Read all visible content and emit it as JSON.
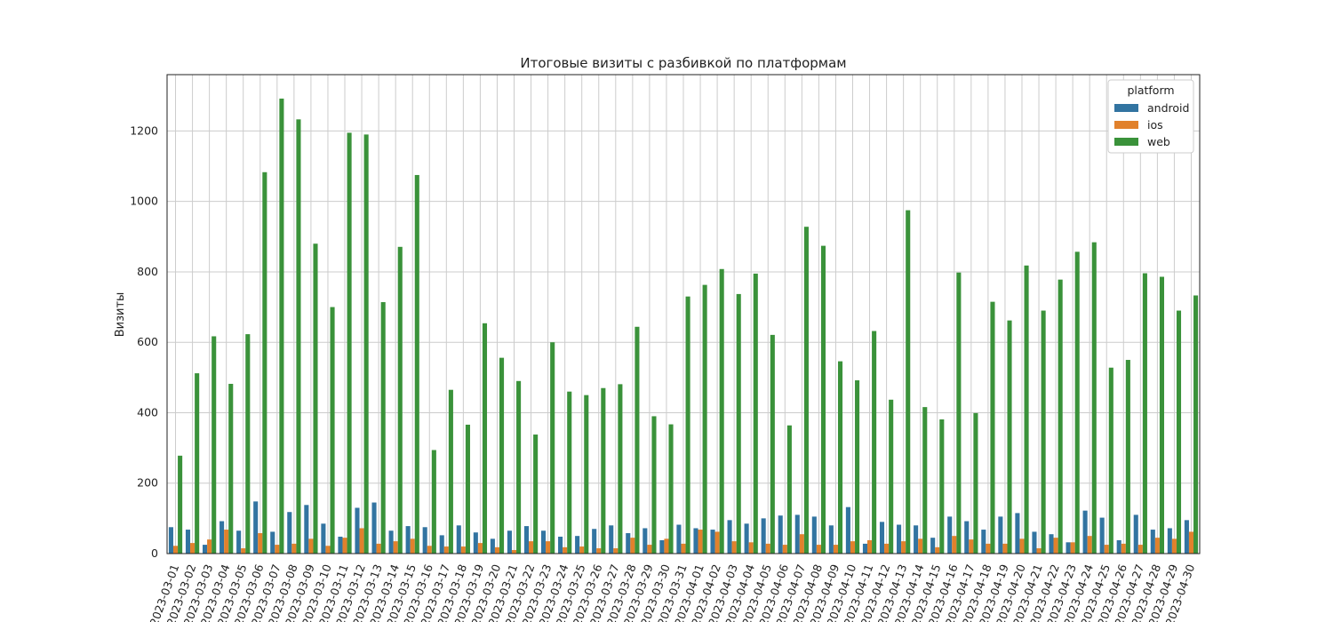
{
  "chart_data": {
    "type": "bar",
    "title": "Итоговые визиты с разбивкой по платформам",
    "xlabel": "",
    "ylabel": "Визиты",
    "ylim": [
      0,
      1360
    ],
    "yticks": [
      0,
      200,
      400,
      600,
      800,
      1000,
      1200
    ],
    "grid": true,
    "legend": {
      "title": "platform",
      "placement": "top-right"
    },
    "categories": [
      "2023-03-01",
      "2023-03-02",
      "2023-03-03",
      "2023-03-04",
      "2023-03-05",
      "2023-03-06",
      "2023-03-07",
      "2023-03-08",
      "2023-03-09",
      "2023-03-10",
      "2023-03-11",
      "2023-03-12",
      "2023-03-13",
      "2023-03-14",
      "2023-03-15",
      "2023-03-16",
      "2023-03-17",
      "2023-03-18",
      "2023-03-19",
      "2023-03-20",
      "2023-03-21",
      "2023-03-22",
      "2023-03-23",
      "2023-03-24",
      "2023-03-25",
      "2023-03-26",
      "2023-03-27",
      "2023-03-28",
      "2023-03-29",
      "2023-03-30",
      "2023-03-31",
      "2023-04-01",
      "2023-04-02",
      "2023-04-03",
      "2023-04-04",
      "2023-04-05",
      "2023-04-06",
      "2023-04-07",
      "2023-04-08",
      "2023-04-09",
      "2023-04-10",
      "2023-04-11",
      "2023-04-12",
      "2023-04-13",
      "2023-04-14",
      "2023-04-15",
      "2023-04-16",
      "2023-04-17",
      "2023-04-18",
      "2023-04-19",
      "2023-04-20",
      "2023-04-21",
      "2023-04-22",
      "2023-04-23",
      "2023-04-24",
      "2023-04-25",
      "2023-04-26",
      "2023-04-27",
      "2023-04-28",
      "2023-04-29",
      "2023-04-30"
    ],
    "series": [
      {
        "name": "android",
        "color": "#3274a1",
        "values": [
          75,
          68,
          25,
          92,
          65,
          148,
          62,
          118,
          138,
          85,
          48,
          130,
          145,
          65,
          78,
          75,
          52,
          80,
          60,
          42,
          65,
          78,
          65,
          48,
          50,
          70,
          80,
          58,
          72,
          38,
          82,
          72,
          68,
          95,
          85,
          100,
          108,
          110,
          105,
          80,
          132,
          28,
          90,
          82,
          80,
          45,
          105,
          92,
          68,
          105,
          115,
          62,
          55,
          32,
          122,
          102,
          38,
          110,
          68,
          72,
          95
        ]
      },
      {
        "name": "ios",
        "color": "#e1812c",
        "values": [
          22,
          30,
          40,
          68,
          15,
          58,
          25,
          28,
          42,
          22,
          45,
          72,
          28,
          35,
          42,
          22,
          20,
          20,
          30,
          18,
          10,
          35,
          35,
          18,
          20,
          15,
          15,
          45,
          25,
          42,
          28,
          68,
          62,
          35,
          32,
          28,
          25,
          55,
          25,
          25,
          35,
          38,
          28,
          35,
          42,
          18,
          50,
          40,
          28,
          28,
          42,
          15,
          45,
          32,
          50,
          25,
          28,
          25,
          45,
          42,
          62
        ]
      },
      {
        "name": "web",
        "color": "#3a923a",
        "values": [
          278,
          512,
          617,
          482,
          623,
          1083,
          1292,
          1233,
          880,
          700,
          1195,
          1190,
          714,
          871,
          1075,
          294,
          465,
          366,
          654,
          556,
          490,
          338,
          600,
          460,
          450,
          470,
          481,
          644,
          390,
          367,
          730,
          763,
          808,
          737,
          795,
          621,
          364,
          928,
          874,
          546,
          492,
          632,
          437,
          975,
          416,
          381,
          798,
          399,
          715,
          662,
          818,
          690,
          778,
          857,
          884,
          528,
          550,
          796,
          786,
          690,
          733
        ]
      }
    ]
  }
}
